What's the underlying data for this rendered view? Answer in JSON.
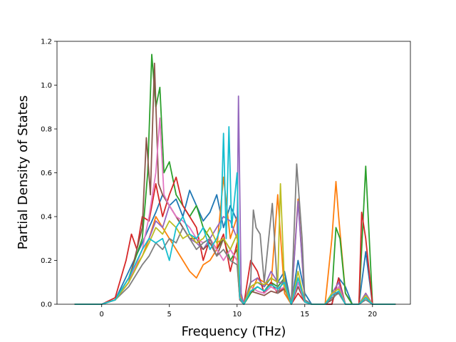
{
  "chart_data": {
    "type": "line",
    "title": "",
    "xlabel": "Frequency (THz)",
    "ylabel": "Partial Density of States",
    "xlim": [
      -3.3,
      22.8
    ],
    "ylim": [
      0,
      1.2
    ],
    "xticks": [
      0,
      5,
      10,
      15,
      20
    ],
    "yticks": [
      0.0,
      0.2,
      0.4,
      0.6,
      0.8,
      1.0,
      1.2
    ],
    "xtick_labels": [
      "0",
      "5",
      "10",
      "15",
      "20"
    ],
    "ytick_labels": [
      "0.0",
      "0.2",
      "0.4",
      "0.6",
      "0.8",
      "1.0",
      "1.2"
    ],
    "grid": false,
    "legend": "none",
    "series": [
      {
        "color": "#1f77b4",
        "x": [
          -2,
          0,
          1,
          2,
          3,
          3.5,
          4,
          4.5,
          5,
          5.5,
          6,
          6.5,
          7,
          7.5,
          8,
          8.5,
          9,
          9.5,
          10,
          10.2,
          10.5,
          11,
          11.5,
          12,
          12.5,
          13,
          13.5,
          14,
          14.5,
          15,
          15.5,
          16,
          16.5,
          17,
          17.5,
          18,
          18.5,
          19,
          19.5,
          20,
          21.7
        ],
        "y": [
          0,
          0,
          0.02,
          0.15,
          0.28,
          0.35,
          0.42,
          0.5,
          0.45,
          0.48,
          0.4,
          0.52,
          0.45,
          0.38,
          0.42,
          0.5,
          0.35,
          0.45,
          0.38,
          0.05,
          0,
          0.08,
          0.1,
          0.08,
          0.12,
          0.1,
          0.15,
          0,
          0.2,
          0.05,
          0,
          0,
          0,
          0,
          0.12,
          0.08,
          0,
          0,
          0.24,
          0,
          0
        ]
      },
      {
        "color": "#ff7f0e",
        "x": [
          -2,
          0,
          1,
          2,
          3,
          3.5,
          4,
          4.5,
          5,
          5.5,
          6,
          6.5,
          7,
          7.5,
          8,
          8.5,
          9,
          9.5,
          10,
          10.2,
          10.5,
          11,
          11.5,
          12,
          12.5,
          13,
          13.5,
          14,
          14.5,
          15,
          15.5,
          16,
          16.5,
          17,
          17.3,
          17.5,
          18,
          18.5,
          19,
          19.5,
          20,
          21.7
        ],
        "y": [
          0,
          0,
          0.02,
          0.12,
          0.22,
          0.3,
          0.4,
          0.35,
          0.3,
          0.25,
          0.2,
          0.15,
          0.12,
          0.18,
          0.2,
          0.25,
          0.58,
          0.3,
          0.4,
          0.05,
          0,
          0.05,
          0.12,
          0.1,
          0.08,
          0.5,
          0.05,
          0,
          0.48,
          0.02,
          0,
          0,
          0,
          0.3,
          0.56,
          0.4,
          0.05,
          0,
          0,
          0.05,
          0,
          0
        ]
      },
      {
        "color": "#2ca02c",
        "x": [
          -2,
          0,
          1,
          2,
          3,
          3.4,
          3.7,
          4,
          4.3,
          4.6,
          5,
          5.5,
          6,
          6.5,
          7,
          7.5,
          8,
          8.5,
          9,
          9.5,
          10,
          10.2,
          10.5,
          11,
          11.5,
          12,
          12.5,
          13,
          13.5,
          14,
          14.5,
          15,
          15.5,
          16,
          16.5,
          17,
          17.3,
          17.6,
          18,
          18.5,
          19,
          19.5,
          20,
          21.7
        ],
        "y": [
          0,
          0,
          0.02,
          0.12,
          0.3,
          0.6,
          1.14,
          0.9,
          0.99,
          0.6,
          0.65,
          0.5,
          0.45,
          0.4,
          0.45,
          0.35,
          0.3,
          0.25,
          0.3,
          0.2,
          0.25,
          0.03,
          0,
          0.05,
          0.08,
          0.06,
          0.1,
          0.08,
          0.12,
          0,
          0.1,
          0.02,
          0,
          0,
          0,
          0.05,
          0.35,
          0.3,
          0.05,
          0,
          0,
          0.63,
          0,
          0
        ]
      },
      {
        "color": "#d62728",
        "x": [
          -2,
          0,
          1,
          1.8,
          2.2,
          2.6,
          3,
          3.5,
          4,
          4.5,
          5,
          5.5,
          6,
          6.5,
          7,
          7.5,
          8,
          8.5,
          9,
          9.5,
          10,
          10.2,
          10.5,
          11,
          11.5,
          12,
          12.5,
          13,
          13.5,
          14,
          14.5,
          15,
          15.5,
          16,
          16.5,
          17,
          17.5,
          18,
          18.5,
          19,
          19.2,
          19.5,
          20,
          21.7
        ],
        "y": [
          0,
          0,
          0.03,
          0.2,
          0.32,
          0.25,
          0.4,
          0.38,
          0.55,
          0.4,
          0.5,
          0.58,
          0.45,
          0.4,
          0.35,
          0.2,
          0.3,
          0.25,
          0.32,
          0.15,
          0.28,
          0.02,
          0,
          0.2,
          0.15,
          0.05,
          0.1,
          0.05,
          0.08,
          0,
          0.05,
          0.01,
          0,
          0,
          0,
          0,
          0.12,
          0,
          0,
          0,
          0.42,
          0.3,
          0,
          0
        ]
      },
      {
        "color": "#9467bd",
        "x": [
          -2,
          0,
          1,
          2,
          3,
          3.5,
          4,
          4.5,
          5,
          5.5,
          6,
          6.5,
          7,
          7.5,
          8,
          8.5,
          9,
          9.5,
          10,
          10.1,
          10.3,
          10.5,
          11,
          11.5,
          12,
          12.5,
          13,
          13.5,
          14,
          14.5,
          15,
          15.5,
          16,
          16.5,
          17,
          17.5,
          18,
          18.5,
          19,
          19.5,
          20,
          21.7
        ],
        "y": [
          0,
          0,
          0.02,
          0.1,
          0.25,
          0.3,
          0.38,
          0.35,
          0.45,
          0.4,
          0.35,
          0.3,
          0.28,
          0.25,
          0.3,
          0.35,
          0.4,
          0.38,
          0.3,
          0.95,
          0.05,
          0,
          0.1,
          0.12,
          0.08,
          0.15,
          0.1,
          0.1,
          0,
          0.47,
          0.02,
          0,
          0,
          0,
          0.05,
          0.1,
          0,
          0,
          0,
          0.05,
          0,
          0
        ]
      },
      {
        "color": "#8c564b",
        "x": [
          -2,
          0,
          1,
          2,
          3,
          3.3,
          3.6,
          3.9,
          4.2,
          4.5,
          5,
          5.5,
          6,
          6.5,
          7,
          7.5,
          8,
          8.5,
          9,
          9.5,
          10,
          10.2,
          10.5,
          11,
          11.5,
          12,
          12.5,
          13,
          13.5,
          14,
          14.5,
          15,
          15.5,
          16,
          16.5,
          17,
          17.5,
          18,
          18.5,
          19,
          19.5,
          20,
          21.7
        ],
        "y": [
          0,
          0,
          0.02,
          0.1,
          0.35,
          0.76,
          0.5,
          1.1,
          0.55,
          0.5,
          0.45,
          0.4,
          0.35,
          0.3,
          0.3,
          0.25,
          0.28,
          0.22,
          0.3,
          0.25,
          0.2,
          0.02,
          0,
          0.06,
          0.05,
          0.04,
          0.06,
          0.05,
          0.07,
          0,
          0.08,
          0.01,
          0,
          0,
          0,
          0.02,
          0.06,
          0,
          0,
          0,
          0.03,
          0,
          0
        ]
      },
      {
        "color": "#e377c2",
        "x": [
          -2,
          0,
          1,
          2,
          3,
          3.5,
          4,
          4.3,
          4.6,
          5,
          5.5,
          6,
          6.5,
          7,
          7.5,
          8,
          8.5,
          9,
          9.5,
          10,
          10.2,
          10.5,
          11,
          11.5,
          12,
          12.5,
          13,
          13.5,
          14,
          14.5,
          15,
          15.5,
          16,
          16.5,
          17,
          17.5,
          18,
          18.5,
          19,
          19.5,
          20,
          21.7
        ],
        "y": [
          0,
          0,
          0.02,
          0.1,
          0.25,
          0.4,
          0.6,
          0.85,
          0.5,
          0.45,
          0.4,
          0.38,
          0.35,
          0.3,
          0.28,
          0.3,
          0.25,
          0.2,
          0.25,
          0.2,
          0.02,
          0,
          0.08,
          0.06,
          0.05,
          0.08,
          0.06,
          0.08,
          0,
          0.1,
          0.01,
          0,
          0,
          0,
          0.04,
          0.08,
          0,
          0,
          0,
          0.04,
          0,
          0
        ]
      },
      {
        "color": "#7f7f7f",
        "x": [
          -2,
          0,
          1,
          2,
          3,
          3.5,
          4,
          4.5,
          5,
          5.5,
          6,
          6.5,
          7,
          7.5,
          8,
          8.5,
          9,
          9.5,
          10,
          10.2,
          10.5,
          11,
          11.2,
          11.4,
          11.7,
          12,
          12.3,
          12.6,
          13,
          13.5,
          14,
          14.4,
          14.8,
          15,
          15.5,
          16,
          16.5,
          17,
          17.5,
          18,
          18.5,
          19,
          19.5,
          20,
          21.7
        ],
        "y": [
          0,
          0,
          0.02,
          0.08,
          0.18,
          0.22,
          0.28,
          0.25,
          0.3,
          0.28,
          0.35,
          0.3,
          0.25,
          0.28,
          0.3,
          0.22,
          0.25,
          0.2,
          0.18,
          0.02,
          0,
          0.1,
          0.43,
          0.35,
          0.32,
          0.1,
          0.28,
          0.46,
          0.05,
          0.12,
          0,
          0.64,
          0.3,
          0.02,
          0,
          0,
          0,
          0.03,
          0.05,
          0,
          0,
          0,
          0.02,
          0,
          0
        ]
      },
      {
        "color": "#bcbd22",
        "x": [
          -2,
          0,
          1,
          2,
          3,
          3.5,
          4,
          4.5,
          5,
          5.5,
          6,
          6.5,
          7,
          7.5,
          8,
          8.5,
          9,
          9.5,
          10,
          10.2,
          10.5,
          11,
          11.5,
          12,
          12.5,
          13,
          13.2,
          13.5,
          14,
          14.5,
          15,
          15.5,
          16,
          16.5,
          17,
          17.5,
          18,
          18.5,
          19,
          19.5,
          20,
          21.7
        ],
        "y": [
          0,
          0,
          0.02,
          0.1,
          0.22,
          0.28,
          0.35,
          0.32,
          0.38,
          0.35,
          0.3,
          0.32,
          0.28,
          0.3,
          0.35,
          0.28,
          0.3,
          0.25,
          0.32,
          0.03,
          0,
          0.08,
          0.1,
          0.09,
          0.12,
          0.1,
          0.55,
          0.08,
          0,
          0.15,
          0.01,
          0,
          0,
          0,
          0.05,
          0.07,
          0,
          0,
          0,
          0.04,
          0,
          0
        ]
      },
      {
        "color": "#17becf",
        "x": [
          -2,
          0,
          1,
          2,
          3,
          3.5,
          4,
          4.5,
          5,
          5.5,
          6,
          6.5,
          7,
          7.5,
          8,
          8.5,
          8.8,
          9,
          9.2,
          9.4,
          9.6,
          10,
          10.2,
          10.5,
          11,
          11.5,
          12,
          12.5,
          13,
          13.5,
          14,
          14.5,
          15,
          15.5,
          16,
          16.5,
          17,
          17.5,
          18,
          18.5,
          19,
          19.5,
          20,
          21.7
        ],
        "y": [
          0,
          0,
          0.02,
          0.12,
          0.25,
          0.3,
          0.28,
          0.3,
          0.2,
          0.35,
          0.4,
          0.32,
          0.3,
          0.35,
          0.25,
          0.3,
          0.35,
          0.78,
          0.3,
          0.81,
          0.35,
          0.6,
          0.03,
          0,
          0.06,
          0.08,
          0.06,
          0.09,
          0.07,
          0.1,
          0,
          0.12,
          0.01,
          0,
          0,
          0,
          0.04,
          0.06,
          0,
          0,
          0,
          0.03,
          0,
          0
        ]
      }
    ]
  }
}
